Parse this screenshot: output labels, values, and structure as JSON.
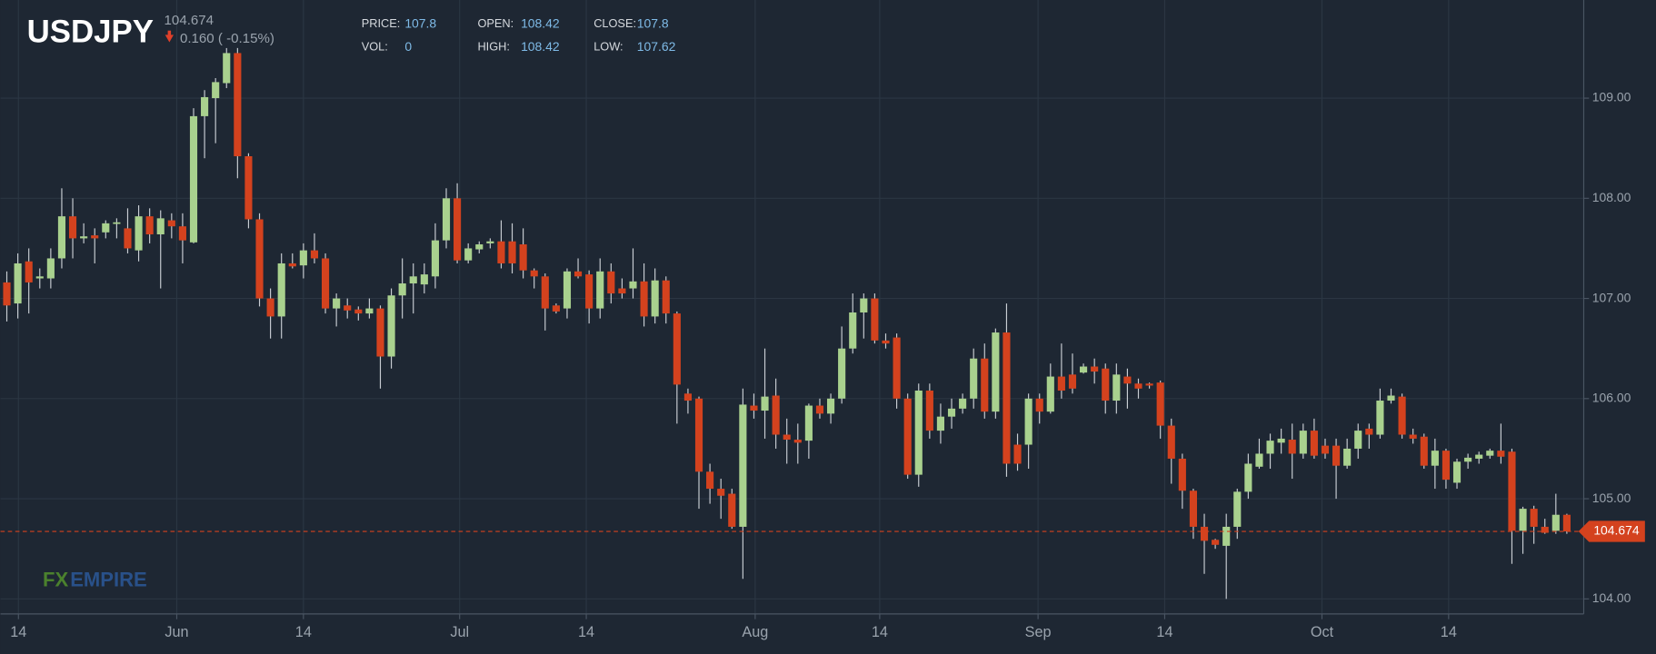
{
  "chart_data": {
    "type": "candlestick",
    "title": "USDJPY",
    "last_price": 104.674,
    "change_label": "0.160 ( -0.15%)",
    "info": [
      {
        "label": "PRICE:",
        "value": 107.8
      },
      {
        "label": "OPEN:",
        "value": 108.42
      },
      {
        "label": "CLOSE:",
        "value": 107.8
      },
      {
        "label": "VOL:",
        "value": 0
      },
      {
        "label": "HIGH:",
        "value": 108.42
      },
      {
        "label": "LOW:",
        "value": 107.62
      }
    ],
    "watermark": [
      "FX",
      "EMPIRE"
    ],
    "up_color": "#a9d18e",
    "down_color": "#d4421e",
    "grid": true,
    "ylim": [
      103.85,
      109.98
    ],
    "yticks": [
      {
        "value": 104,
        "label": "104.00"
      },
      {
        "value": 105,
        "label": "105.00"
      },
      {
        "value": 106,
        "label": "106.00"
      },
      {
        "value": 107,
        "label": "107.00"
      },
      {
        "value": 108,
        "label": "108.00"
      },
      {
        "value": 109,
        "label": "109.00"
      }
    ],
    "xtick_labels": [
      "14",
      "Jun",
      "14",
      "Jul",
      "14",
      "Aug",
      "14",
      "Sep",
      "14",
      "Oct",
      "14"
    ],
    "open": [
      107.16,
      106.95,
      107.37,
      107.2,
      107.2,
      107.4,
      107.82,
      107.6,
      107.63,
      107.66,
      107.75,
      107.7,
      107.48,
      107.82,
      107.64,
      107.78,
      107.72,
      107.56,
      108.82,
      109.0,
      109.15,
      109.45,
      108.42,
      107.79,
      107.0,
      106.82,
      107.35,
      107.33,
      107.48,
      107.4,
      106.9,
      106.93,
      106.89,
      106.85,
      106.9,
      106.42,
      107.03,
      107.15,
      107.14,
      107.22,
      107.58,
      108.0,
      107.38,
      107.49,
      107.55,
      107.57,
      107.57,
      107.54,
      107.28,
      107.22,
      106.93,
      106.9,
      107.27,
      107.24,
      106.9,
      107.27,
      107.1,
      107.1,
      107.17,
      106.82,
      107.18,
      106.85,
      106.05,
      106.0,
      105.27,
      105.1,
      105.05,
      104.72,
      105.93,
      105.88,
      106.03,
      105.64,
      105.59,
      105.58,
      105.93,
      105.85,
      106.0,
      106.5,
      106.86,
      107.0,
      106.58,
      106.61,
      106.0,
      105.24,
      106.08,
      105.68,
      105.82,
      105.9,
      106.0,
      106.4,
      105.87,
      106.66,
      105.54,
      105.54,
      106.0,
      105.87,
      106.22,
      106.24,
      106.26,
      106.32,
      106.3,
      105.98,
      106.22,
      106.15,
      106.15,
      106.16,
      105.73,
      105.4,
      105.08,
      104.72,
      104.59,
      104.53,
      104.72,
      105.07,
      105.32,
      105.45,
      105.56,
      105.59,
      105.45,
      105.68,
      105.53,
      105.53,
      105.33,
      105.5,
      105.7,
      105.64,
      105.98,
      106.02,
      105.64,
      105.62,
      105.33,
      105.48,
      105.16,
      105.37,
      105.4,
      105.43,
      105.48,
      105.47,
      104.68,
      104.9,
      104.72,
      104.68,
      104.84
    ],
    "high": [
      107.27,
      107.45,
      107.5,
      107.3,
      107.5,
      108.1,
      108.0,
      107.75,
      107.7,
      107.78,
      107.8,
      107.9,
      107.93,
      107.9,
      107.88,
      107.85,
      107.85,
      108.9,
      109.08,
      109.2,
      109.5,
      109.5,
      108.45,
      107.85,
      107.1,
      107.45,
      107.45,
      107.55,
      107.65,
      107.45,
      107.05,
      107.0,
      106.92,
      107.0,
      106.93,
      107.1,
      107.4,
      107.35,
      107.35,
      107.75,
      108.1,
      108.15,
      107.55,
      107.57,
      107.6,
      107.78,
      107.75,
      107.7,
      107.3,
      107.25,
      106.95,
      107.3,
      107.4,
      107.28,
      107.4,
      107.35,
      107.2,
      107.5,
      107.35,
      107.3,
      107.22,
      106.87,
      106.1,
      106.02,
      105.35,
      105.2,
      105.1,
      106.1,
      106.05,
      106.5,
      106.2,
      105.8,
      105.75,
      105.95,
      106.0,
      106.05,
      106.72,
      107.05,
      107.05,
      107.05,
      106.65,
      106.65,
      106.05,
      106.15,
      106.15,
      105.95,
      106.0,
      106.05,
      106.5,
      106.55,
      106.7,
      106.95,
      105.65,
      106.05,
      106.05,
      106.35,
      106.55,
      106.45,
      106.35,
      106.4,
      106.35,
      106.35,
      106.3,
      106.2,
      106.16,
      106.18,
      105.8,
      105.45,
      105.1,
      104.85,
      104.6,
      104.85,
      105.1,
      105.45,
      105.6,
      105.65,
      105.7,
      105.75,
      105.75,
      105.8,
      105.6,
      105.6,
      105.6,
      105.75,
      105.75,
      106.1,
      106.1,
      106.05,
      105.7,
      105.65,
      105.6,
      105.5,
      105.4,
      105.45,
      105.47,
      105.5,
      105.75,
      105.5,
      104.92,
      104.93,
      104.8,
      105.05,
      104.85
    ],
    "low": [
      106.77,
      106.8,
      106.85,
      107.1,
      107.1,
      107.3,
      107.4,
      107.55,
      107.35,
      107.6,
      107.6,
      107.45,
      107.37,
      107.55,
      107.1,
      107.6,
      107.35,
      107.55,
      108.4,
      108.55,
      109.1,
      108.2,
      107.7,
      106.92,
      106.6,
      106.6,
      107.3,
      107.2,
      107.35,
      106.85,
      106.72,
      106.8,
      106.78,
      106.8,
      106.1,
      106.3,
      106.8,
      106.85,
      107.05,
      107.1,
      107.5,
      107.35,
      107.35,
      107.45,
      107.5,
      107.3,
      107.25,
      107.2,
      107.1,
      106.68,
      106.85,
      106.8,
      107.2,
      106.75,
      106.8,
      106.95,
      107.0,
      107.0,
      106.72,
      106.75,
      106.75,
      105.75,
      105.85,
      104.9,
      104.95,
      104.8,
      104.7,
      104.2,
      105.8,
      105.6,
      105.5,
      105.35,
      105.35,
      105.4,
      105.8,
      105.75,
      105.95,
      106.45,
      106.6,
      106.55,
      106.5,
      105.9,
      105.2,
      105.12,
      105.6,
      105.55,
      105.7,
      105.85,
      105.9,
      105.8,
      105.8,
      105.22,
      105.28,
      105.3,
      105.75,
      105.85,
      106.0,
      106.05,
      106.25,
      106.15,
      105.85,
      105.85,
      105.9,
      106.0,
      106.1,
      105.6,
      105.15,
      104.9,
      104.6,
      104.25,
      104.5,
      104.0,
      104.6,
      105.0,
      105.3,
      105.3,
      105.45,
      105.2,
      105.4,
      105.4,
      105.4,
      105.0,
      105.3,
      105.4,
      105.5,
      105.6,
      105.95,
      105.6,
      105.55,
      105.3,
      105.1,
      105.1,
      105.1,
      105.3,
      105.35,
      105.4,
      105.35,
      104.35,
      104.45,
      104.55,
      104.65,
      104.65,
      104.65
    ],
    "close": [
      106.93,
      107.35,
      107.16,
      107.22,
      107.4,
      107.82,
      107.6,
      107.62,
      107.6,
      107.75,
      107.76,
      107.5,
      107.82,
      107.64,
      107.8,
      107.72,
      107.58,
      108.82,
      109.01,
      109.16,
      109.45,
      108.42,
      107.79,
      107.0,
      106.82,
      107.35,
      107.32,
      107.48,
      107.4,
      106.9,
      107.0,
      106.88,
      106.85,
      106.9,
      106.42,
      107.03,
      107.15,
      107.22,
      107.24,
      107.58,
      108.0,
      107.38,
      107.5,
      107.54,
      107.57,
      107.35,
      107.35,
      107.28,
      107.22,
      106.9,
      106.87,
      107.27,
      107.22,
      106.9,
      107.27,
      107.05,
      107.05,
      107.17,
      106.82,
      107.18,
      106.85,
      106.14,
      105.98,
      105.27,
      105.1,
      105.03,
      104.72,
      105.94,
      105.88,
      106.02,
      105.64,
      105.59,
      105.56,
      105.93,
      105.85,
      106.0,
      106.5,
      106.86,
      107.0,
      106.58,
      106.55,
      106.0,
      105.24,
      106.08,
      105.68,
      105.82,
      105.9,
      106.0,
      106.4,
      105.87,
      106.66,
      105.35,
      105.35,
      106.0,
      105.87,
      106.22,
      106.08,
      106.1,
      106.32,
      106.27,
      105.98,
      106.24,
      106.15,
      106.1,
      106.13,
      105.73,
      105.4,
      105.08,
      104.72,
      104.58,
      104.54,
      104.72,
      105.07,
      105.35,
      105.45,
      105.58,
      105.6,
      105.45,
      105.68,
      105.43,
      105.45,
      105.33,
      105.5,
      105.68,
      105.64,
      105.98,
      106.03,
      105.64,
      105.6,
      105.33,
      105.48,
      105.19,
      105.37,
      105.41,
      105.44,
      105.48,
      105.42,
      104.68,
      104.9,
      104.72,
      104.66,
      104.84,
      104.674
    ]
  }
}
